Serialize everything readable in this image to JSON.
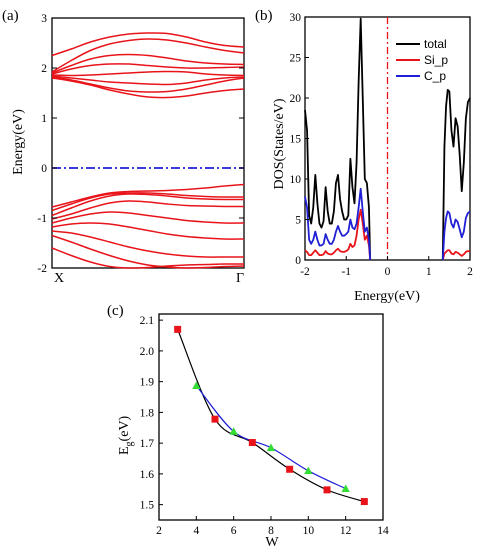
{
  "chart_data": [
    {
      "panel_label": "(a)",
      "type": "line",
      "ylabel": "Energy(eV)",
      "ylim": [
        -2,
        3
      ],
      "yticks": [
        "-2",
        "-1",
        "0",
        "1",
        "2",
        "3"
      ],
      "xtick_labels": [
        "X",
        "Γ"
      ],
      "fermi_level": 0,
      "band_color": "#e8141a",
      "fermi_color": "#1f1fd6",
      "x": [
        0,
        0.1,
        0.2,
        0.3,
        0.4,
        0.5,
        0.6,
        0.7,
        0.8,
        0.9,
        1.0
      ],
      "bands": [
        [
          2.25,
          2.38,
          2.52,
          2.62,
          2.68,
          2.7,
          2.69,
          2.62,
          2.52,
          2.45,
          2.42
        ],
        [
          1.92,
          2.15,
          2.35,
          2.48,
          2.55,
          2.58,
          2.56,
          2.5,
          2.42,
          2.35,
          2.3
        ],
        [
          1.9,
          2.05,
          2.18,
          2.25,
          2.27,
          2.25,
          2.2,
          2.14,
          2.1,
          2.08,
          2.07
        ],
        [
          1.88,
          1.98,
          2.05,
          2.08,
          2.08,
          2.05,
          2.02,
          2.0,
          2.0,
          2.01,
          2.02
        ],
        [
          1.86,
          1.85,
          1.86,
          1.88,
          1.9,
          1.92,
          1.93,
          1.92,
          1.88,
          1.86,
          1.85
        ],
        [
          1.84,
          1.8,
          1.76,
          1.72,
          1.7,
          1.68,
          1.67,
          1.7,
          1.76,
          1.8,
          1.82
        ],
        [
          1.82,
          1.76,
          1.68,
          1.6,
          1.54,
          1.52,
          1.53,
          1.58,
          1.66,
          1.74,
          1.8
        ],
        [
          1.8,
          1.74,
          1.66,
          1.56,
          1.48,
          1.42,
          1.41,
          1.44,
          1.5,
          1.55,
          1.58
        ],
        [
          -0.78,
          -0.68,
          -0.58,
          -0.5,
          -0.47,
          -0.46,
          -0.45,
          -0.43,
          -0.4,
          -0.36,
          -0.33
        ],
        [
          -0.85,
          -0.72,
          -0.6,
          -0.52,
          -0.5,
          -0.5,
          -0.52,
          -0.55,
          -0.57,
          -0.58,
          -0.58
        ],
        [
          -0.95,
          -0.8,
          -0.66,
          -0.56,
          -0.52,
          -0.53,
          -0.56,
          -0.6,
          -0.62,
          -0.63,
          -0.63
        ],
        [
          -1.02,
          -0.92,
          -0.8,
          -0.7,
          -0.66,
          -0.68,
          -0.72,
          -0.75,
          -0.76,
          -0.77,
          -0.77
        ],
        [
          -1.1,
          -1.0,
          -0.92,
          -0.88,
          -0.9,
          -0.95,
          -1.0,
          -1.05,
          -1.08,
          -1.1,
          -1.1
        ],
        [
          -1.18,
          -1.12,
          -1.1,
          -1.12,
          -1.18,
          -1.25,
          -1.32,
          -1.37,
          -1.4,
          -1.42,
          -1.42
        ],
        [
          -1.26,
          -1.3,
          -1.38,
          -1.48,
          -1.58,
          -1.66,
          -1.72,
          -1.76,
          -1.78,
          -1.78,
          -1.78
        ],
        [
          -1.35,
          -1.48,
          -1.62,
          -1.75,
          -1.86,
          -1.94,
          -1.98,
          -2.0,
          -1.99,
          -1.97,
          -1.96
        ],
        [
          -1.6,
          -1.75,
          -1.88,
          -1.97,
          -2.0,
          -1.99,
          -1.96,
          -1.94,
          -1.93,
          -1.92,
          -1.92
        ]
      ]
    },
    {
      "panel_label": "(b)",
      "type": "line",
      "xlabel": "Energy(eV)",
      "ylabel": "DOS(States/eV)",
      "xlim": [
        -2,
        2
      ],
      "ylim": [
        0,
        30
      ],
      "xticks": [
        "-2",
        "-1",
        "0",
        "1",
        "2"
      ],
      "yticks": [
        "0",
        "5",
        "10",
        "15",
        "20",
        "25",
        "30"
      ],
      "fermi_level": 0,
      "fermi_color": "#e8141a",
      "legend_position": "top-right",
      "series": [
        {
          "name": "total",
          "color": "#000000",
          "segments": [
            {
              "x": [
                -2.0,
                -1.95,
                -1.9,
                -1.85,
                -1.8,
                -1.75,
                -1.7,
                -1.65,
                -1.6,
                -1.55,
                -1.5,
                -1.45,
                -1.4,
                -1.35,
                -1.3,
                -1.25,
                -1.2,
                -1.15,
                -1.1,
                -1.05,
                -1.0,
                -0.95,
                -0.9,
                -0.85,
                -0.8,
                -0.75,
                -0.7,
                -0.65,
                -0.6,
                -0.55,
                -0.5,
                -0.45,
                -0.42
              ],
              "y": [
                18.5,
                16.0,
                5.5,
                4.5,
                6.5,
                10.5,
                7.0,
                4.5,
                4.0,
                4.8,
                9.0,
                6.0,
                4.5,
                4.5,
                6.0,
                9.5,
                10.5,
                7.5,
                6.0,
                5.0,
                5.0,
                5.5,
                12.5,
                9.0,
                7.0,
                12.0,
                22.0,
                29.8,
                20.0,
                10.0,
                9.5,
                6.5,
                0.0
              ]
            },
            {
              "x": [
                1.34,
                1.38,
                1.42,
                1.46,
                1.5,
                1.55,
                1.6,
                1.65,
                1.7,
                1.75,
                1.8,
                1.85,
                1.9,
                1.95,
                2.0
              ],
              "y": [
                0.0,
                14.0,
                19.0,
                21.0,
                20.8,
                16.0,
                14.0,
                17.5,
                16.5,
                13.0,
                8.5,
                12.0,
                17.5,
                19.5,
                20.0
              ]
            }
          ]
        },
        {
          "name": "Si_p",
          "color": "#e8141a",
          "segments": [
            {
              "x": [
                -2.0,
                -1.95,
                -1.9,
                -1.85,
                -1.8,
                -1.75,
                -1.7,
                -1.65,
                -1.6,
                -1.55,
                -1.5,
                -1.45,
                -1.4,
                -1.35,
                -1.3,
                -1.25,
                -1.2,
                -1.15,
                -1.1,
                -1.05,
                -1.0,
                -0.95,
                -0.9,
                -0.85,
                -0.8,
                -0.75,
                -0.7,
                -0.65,
                -0.6,
                -0.55,
                -0.5,
                -0.45,
                -0.42
              ],
              "y": [
                1.2,
                1.0,
                0.6,
                0.6,
                0.9,
                1.2,
                0.9,
                0.6,
                0.6,
                0.7,
                1.1,
                0.8,
                0.7,
                0.7,
                0.9,
                1.2,
                1.4,
                1.1,
                1.0,
                1.0,
                1.1,
                1.3,
                2.0,
                1.6,
                1.8,
                3.0,
                5.0,
                6.2,
                4.5,
                2.5,
                3.0,
                1.8,
                0.0
              ]
            },
            {
              "x": [
                1.34,
                1.38,
                1.42,
                1.46,
                1.5,
                1.55,
                1.6,
                1.65,
                1.7,
                1.75,
                1.8,
                1.85,
                1.9,
                1.95,
                2.0
              ],
              "y": [
                0.0,
                0.8,
                1.0,
                1.2,
                1.2,
                0.8,
                0.7,
                1.0,
                0.9,
                0.7,
                0.5,
                0.7,
                1.0,
                1.1,
                1.1
              ]
            }
          ]
        },
        {
          "name": "C_p",
          "color": "#1f1fd6",
          "segments": [
            {
              "x": [
                -2.0,
                -1.95,
                -1.9,
                -1.85,
                -1.8,
                -1.75,
                -1.7,
                -1.65,
                -1.6,
                -1.55,
                -1.5,
                -1.45,
                -1.4,
                -1.35,
                -1.3,
                -1.25,
                -1.2,
                -1.15,
                -1.1,
                -1.05,
                -1.0,
                -0.95,
                -0.9,
                -0.85,
                -0.8,
                -0.75,
                -0.7,
                -0.65,
                -0.6,
                -0.55,
                -0.5,
                -0.45,
                -0.42
              ],
              "y": [
                7.8,
                6.5,
                2.5,
                2.0,
                2.5,
                3.5,
                2.5,
                1.8,
                1.8,
                2.0,
                3.2,
                2.5,
                2.0,
                2.0,
                2.5,
                3.5,
                4.2,
                3.5,
                3.0,
                3.0,
                3.2,
                3.5,
                5.0,
                4.0,
                3.8,
                4.5,
                6.5,
                8.8,
                6.0,
                3.5,
                4.0,
                2.5,
                0.0
              ]
            },
            {
              "x": [
                1.34,
                1.38,
                1.42,
                1.46,
                1.5,
                1.55,
                1.6,
                1.65,
                1.7,
                1.75,
                1.8,
                1.85,
                1.9,
                1.95,
                2.0
              ],
              "y": [
                0.0,
                3.5,
                5.2,
                6.0,
                5.8,
                4.5,
                4.0,
                5.0,
                4.7,
                3.8,
                2.8,
                3.5,
                5.2,
                5.8,
                6.0
              ]
            }
          ]
        }
      ]
    },
    {
      "panel_label": "(c)",
      "type": "line",
      "xlabel": "W",
      "ylabel": "E",
      "ylabel_subscript": "g",
      "ylabel_unit": "(eV)",
      "xlim": [
        2,
        14
      ],
      "ylim": [
        1.45,
        2.12
      ],
      "xticks": [
        "2",
        "4",
        "6",
        "8",
        "10",
        "12",
        "14"
      ],
      "yticks": [
        "1.5",
        "1.6",
        "1.7",
        "1.8",
        "1.9",
        "2.0",
        "2.1"
      ],
      "series": [
        {
          "marker": "square",
          "line_color": "#000000",
          "marker_color": "#e8141a",
          "x": [
            3,
            5,
            7,
            9,
            11,
            13
          ],
          "y": [
            2.07,
            1.778,
            1.702,
            1.615,
            1.548,
            1.51
          ]
        },
        {
          "marker": "triangle",
          "line_color": "#1f1fd6",
          "marker_color": "#33dd33",
          "x": [
            4,
            6,
            8,
            10,
            12
          ],
          "y": [
            1.887,
            1.738,
            1.685,
            1.61,
            1.552
          ]
        }
      ]
    }
  ]
}
